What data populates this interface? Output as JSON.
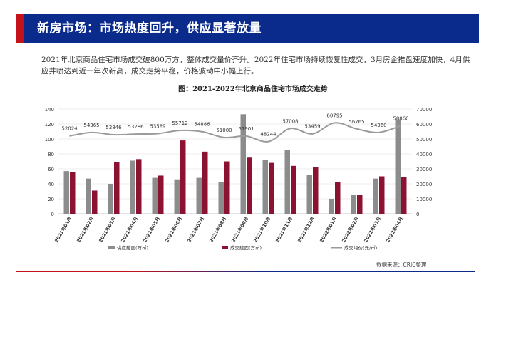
{
  "header": {
    "title": "新房市场：市场热度回升，供应显著放量"
  },
  "intro": "2021年北京商品住宅市场成交破800万方，整体成交量价齐升。2022年住宅市场持续恢复性成交，3月房企推盘速度加快，4月供应井喷达到近一年次新高，成交走势平稳，价格波动中小幅上行。",
  "chart_title": "图：2021-2022年北京商品住宅市场成交走势",
  "source": "数据来源：CRIC整理",
  "colors": {
    "supply": "#8c8c8c",
    "deal": "#8b1230",
    "price": "#9a9a9a"
  },
  "chart_data": {
    "type": "bar",
    "categories": [
      "2021年01月",
      "2021年02月",
      "2021年03月",
      "2021年04月",
      "2021年05月",
      "2021年06月",
      "2021年07月",
      "2021年08月",
      "2021年09月",
      "2021年10月",
      "2021年11月",
      "2021年12月",
      "2022年01月",
      "2022年02月",
      "2022年03月",
      "2022年04月"
    ],
    "series": [
      {
        "name": "供应建面(万㎡)",
        "type": "bar",
        "axis": "left",
        "values": [
          57,
          47,
          40,
          71,
          48,
          46,
          48,
          42,
          133,
          72,
          85,
          52,
          20,
          25,
          47,
          126
        ]
      },
      {
        "name": "成交建面(万㎡)",
        "type": "bar",
        "axis": "left",
        "values": [
          56,
          31,
          69,
          73,
          51,
          98,
          83,
          70,
          75,
          68,
          64,
          62,
          42,
          25,
          50,
          49
        ]
      },
      {
        "name": "成交均价(元/㎡)",
        "type": "line",
        "axis": "right",
        "values": [
          52024,
          54365,
          52846,
          53286,
          53589,
          55712,
          54886,
          51000,
          51901,
          48244,
          57008,
          53459,
          60795,
          56765,
          54360,
          58860
        ],
        "labels": [
          "52024",
          "54365",
          "52846",
          "53286",
          "53589",
          "55712",
          "54886",
          "51000",
          "51901",
          "48244",
          "57008",
          "53459",
          "60795",
          "56765",
          "54360",
          "58860"
        ]
      }
    ],
    "y_left": {
      "min": 0,
      "max": 140,
      "ticks": [
        "0",
        "20",
        "40",
        "60",
        "80",
        "100",
        "120",
        "140"
      ]
    },
    "y_right": {
      "min": 0,
      "max": 70000,
      "ticks": [
        "0",
        "10000",
        "20000",
        "30000",
        "40000",
        "50000",
        "60000",
        "70000"
      ]
    },
    "legend_position": "bottom",
    "grid": true
  }
}
